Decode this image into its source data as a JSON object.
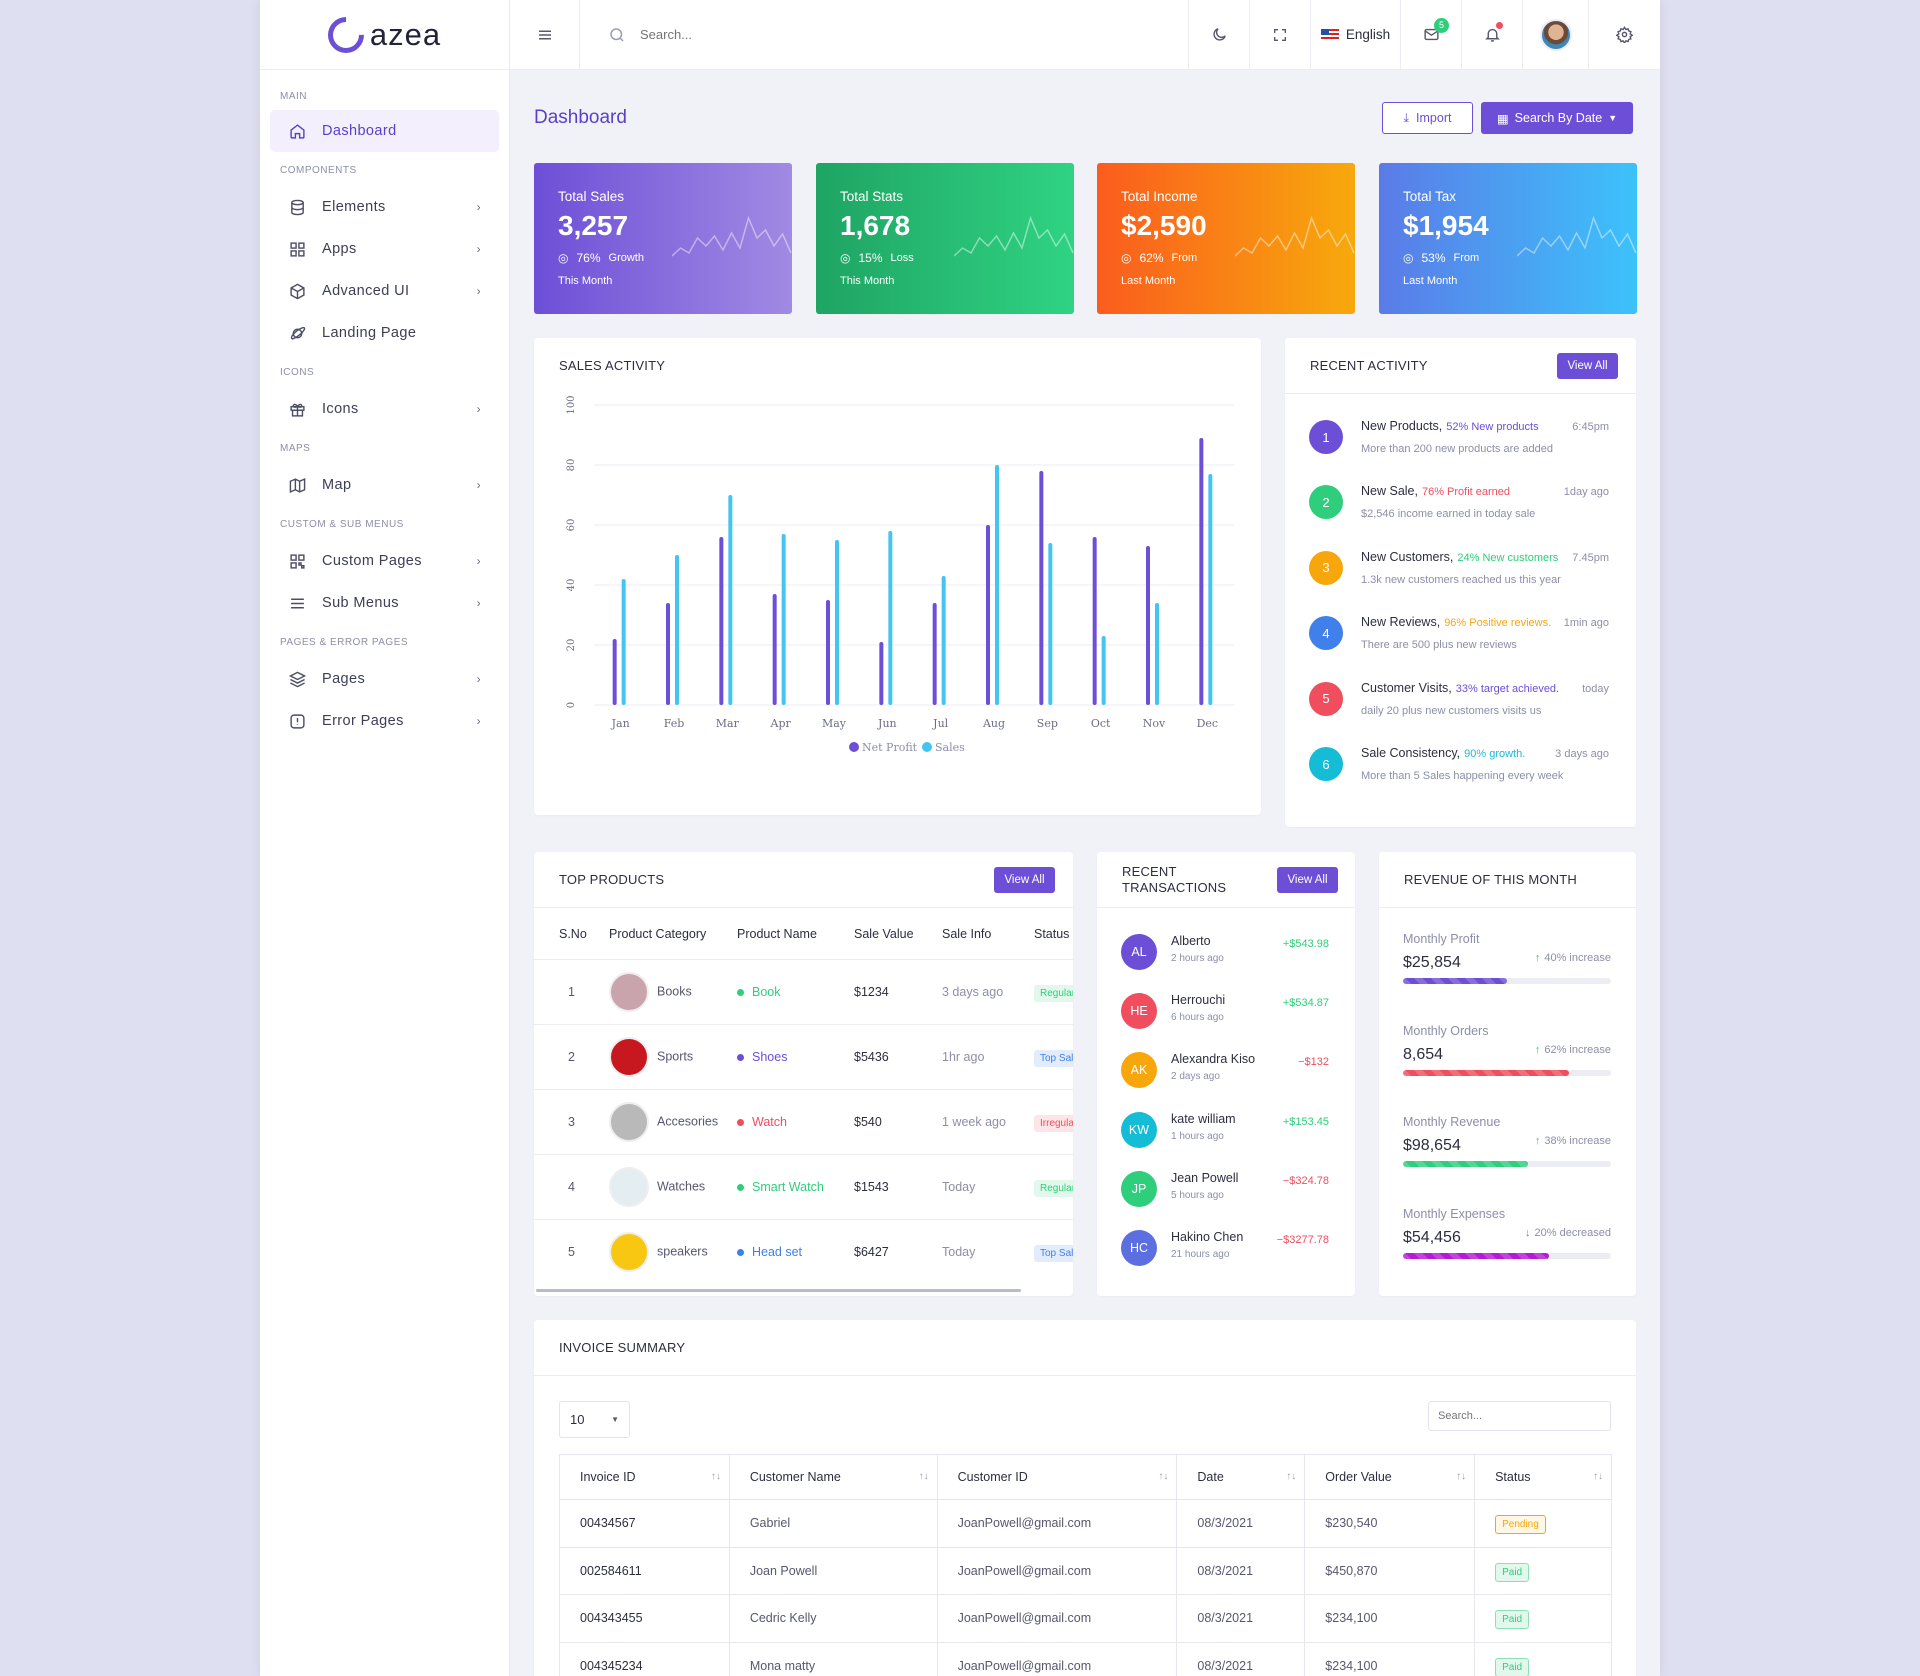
{
  "brand": {
    "name": "azea"
  },
  "sidebar": {
    "sections": [
      {
        "title": "MAIN"
      },
      {
        "title": "COMPONENTS"
      },
      {
        "title": "ICONS"
      },
      {
        "title": "MAPS"
      },
      {
        "title": "CUSTOM & SUB MENUS"
      },
      {
        "title": "PAGES & ERROR PAGES"
      }
    ],
    "items": [
      {
        "label": "Dashboard",
        "icon": "home-icon"
      },
      {
        "label": "Elements",
        "icon": "database-icon"
      },
      {
        "label": "Apps",
        "icon": "grid-icon"
      },
      {
        "label": "Advanced UI",
        "icon": "package-icon"
      },
      {
        "label": "Landing Page",
        "icon": "planet-icon"
      },
      {
        "label": "Icons",
        "icon": "gift-icon"
      },
      {
        "label": "Map",
        "icon": "map-icon"
      },
      {
        "label": "Custom Pages",
        "icon": "qr-grid-icon"
      },
      {
        "label": "Sub Menus",
        "icon": "menu-icon"
      },
      {
        "label": "Pages",
        "icon": "layers-icon"
      },
      {
        "label": "Error Pages",
        "icon": "alert-icon"
      }
    ]
  },
  "topbar": {
    "search_placeholder": "Search...",
    "language": "English",
    "mail_badge": "5"
  },
  "page": {
    "title": "Dashboard",
    "import_label": "Import",
    "search_by_date_label": "Search By Date"
  },
  "stats": [
    {
      "title": "Total Sales",
      "value": "3,257",
      "pct": "76%",
      "pct_label": "Growth",
      "period": "This Month",
      "color_from": "#6d4fd7",
      "color_to": "#a08ae3"
    },
    {
      "title": "Total Stats",
      "value": "1,678",
      "pct": "15%",
      "pct_label": "Loss",
      "period": "This Month",
      "color_from": "#1fa463",
      "color_to": "#2fd383"
    },
    {
      "title": "Total Income",
      "value": "$2,590",
      "pct": "62%",
      "pct_label": "From",
      "period": "Last Month",
      "color_from": "#fb5c1e",
      "color_to": "#f7a90c"
    },
    {
      "title": "Total Tax",
      "value": "$1,954",
      "pct": "53%",
      "pct_label": "From",
      "period": "Last Month",
      "color_from": "#5b7be7",
      "color_to": "#3cc2fb"
    }
  ],
  "sales_activity": {
    "title": "SALES ACTIVITY"
  },
  "chart_data": {
    "type": "bar",
    "categories": [
      "Jan",
      "Feb",
      "Mar",
      "Apr",
      "May",
      "Jun",
      "Jul",
      "Aug",
      "Sep",
      "Oct",
      "Nov",
      "Dec"
    ],
    "series": [
      {
        "name": "Net Profit",
        "color": "#6c4fd6",
        "values": [
          22,
          34,
          56,
          37,
          35,
          21,
          34,
          60,
          78,
          56,
          53,
          89
        ]
      },
      {
        "name": "Sales",
        "color": "#43c4f3",
        "values": [
          42,
          50,
          70,
          57,
          55,
          58,
          43,
          80,
          54,
          23,
          34,
          77
        ]
      }
    ],
    "ylim": [
      0,
      100
    ],
    "yticks": [
      "0",
      "20",
      "40",
      "60",
      "80",
      "100"
    ],
    "grid": true,
    "legend": "bottom"
  },
  "recent_activity": {
    "title": "RECENT ACTIVITY",
    "view_all": "View All",
    "items": [
      {
        "n": "1",
        "title": "New Products,",
        "highlight": "52% New products",
        "hcolor": "#6c4fd6",
        "time": "6:45pm",
        "sub": "More than 200 new products are added",
        "color": "#6c4fd6"
      },
      {
        "n": "2",
        "title": "New Sale,",
        "highlight": "76% Profit earned",
        "hcolor": "#f04e5e",
        "time": "1day ago",
        "sub": "$2,546 income earned in today sale",
        "color": "#2fce7c"
      },
      {
        "n": "3",
        "title": "New Customers,",
        "highlight": "24% New customers",
        "hcolor": "#2fce7c",
        "time": "7.45pm",
        "sub": "1.3k new customers reached us this year",
        "color": "#f7a70c"
      },
      {
        "n": "4",
        "title": "New Reviews,",
        "highlight": "96% Positive reviews.",
        "hcolor": "#f7a70c",
        "time": "1min ago",
        "sub": "There are 500 plus new reviews",
        "color": "#3f80ea"
      },
      {
        "n": "5",
        "title": "Customer Visits,",
        "highlight": "33% target achieved.",
        "hcolor": "#6c4fd6",
        "time": "today",
        "sub": "daily 20 plus new customers visits us",
        "color": "#f04e5e"
      },
      {
        "n": "6",
        "title": "Sale Consistency,",
        "highlight": "90% growth.",
        "hcolor": "#1fb8d8",
        "time": "3 days ago",
        "sub": "More than 5 Sales happening every week",
        "color": "#15bcd6"
      }
    ]
  },
  "top_products": {
    "title": "TOP PRODUCTS",
    "view_all": "View All",
    "headers": [
      "S.No",
      "Product Category",
      "Product Name",
      "Sale Value",
      "Sale Info",
      "Status"
    ],
    "rows": [
      {
        "no": "1",
        "category": "Books",
        "name": "Book",
        "dot": "#2fce7c",
        "value": "$1234",
        "info": "3 days ago",
        "status": "Regular",
        "sbg": "#e3f8ec",
        "sfg": "#2fce7c",
        "icon": "book-image-icon",
        "ibg": "#c9a4ad"
      },
      {
        "no": "2",
        "category": "Sports",
        "name": "Shoes",
        "dot": "#6c4fd6",
        "value": "$5436",
        "info": "1hr ago",
        "status": "Top Sale",
        "sbg": "#e3ecfd",
        "sfg": "#3f80ea",
        "icon": "shoe-image-icon",
        "ibg": "#c8181f"
      },
      {
        "no": "3",
        "category": "Accesories",
        "name": "Watch",
        "dot": "#f04e5e",
        "value": "$540",
        "info": "1 week ago",
        "status": "Irregular",
        "sbg": "#fde5e7",
        "sfg": "#f04e5e",
        "icon": "watch-image-icon",
        "ibg": "#b9b9b9"
      },
      {
        "no": "4",
        "category": "Watches",
        "name": "Smart Watch",
        "dot": "#2fce7c",
        "value": "$1543",
        "info": "Today",
        "status": "Regular",
        "sbg": "#e3f8ec",
        "sfg": "#2fce7c",
        "icon": "smartwatch-image-icon",
        "ibg": "#e4eef2"
      },
      {
        "no": "5",
        "category": "speakers",
        "name": "Head set",
        "dot": "#3f80ea",
        "value": "$6427",
        "info": "Today",
        "status": "Top Sale",
        "sbg": "#e3ecfd",
        "sfg": "#3f80ea",
        "icon": "headset-image-icon",
        "ibg": "#f7c712"
      }
    ]
  },
  "recent_transactions": {
    "title_line1": "RECENT",
    "title_line2": "TRANSACTIONS",
    "view_all": "View All",
    "items": [
      {
        "initials": "AL",
        "name": "Alberto",
        "time": "2 hours ago",
        "amount": "+$543.98",
        "color": "#6c4fd6",
        "acolor": "#2fce7c"
      },
      {
        "initials": "HE",
        "name": "Herrouchi",
        "time": "6 hours ago",
        "amount": "+$534.87",
        "color": "#f04e5e",
        "acolor": "#2fce7c"
      },
      {
        "initials": "AK",
        "name": "Alexandra Kiso",
        "time": "2 days ago",
        "amount": "−$132",
        "color": "#f7a70c",
        "acolor": "#f04e5e"
      },
      {
        "initials": "KW",
        "name": "kate william",
        "time": "1 hours ago",
        "amount": "+$153.45",
        "color": "#15bcd6",
        "acolor": "#2fce7c"
      },
      {
        "initials": "JP",
        "name": "Jean Powell",
        "time": "5 hours ago",
        "amount": "−$324.78",
        "color": "#2fce7c",
        "acolor": "#f04e5e"
      },
      {
        "initials": "HC",
        "name": "Hakino Chen",
        "time": "21 hours ago",
        "amount": "−$3277.78",
        "color": "#5b6fe0",
        "acolor": "#f04e5e"
      }
    ]
  },
  "revenue": {
    "title": "REVENUE OF THIS MONTH",
    "items": [
      {
        "label": "Monthly Profit",
        "value": "$25,854",
        "change": "40% increase",
        "dir": "up",
        "progress": 0.5,
        "color": "#6c4fd6"
      },
      {
        "label": "Monthly Orders",
        "value": "8,654",
        "change": "62% increase",
        "dir": "up",
        "progress": 0.8,
        "color": "#f04e5e"
      },
      {
        "label": "Monthly Revenue",
        "value": "$98,654",
        "change": "38% increase",
        "dir": "up",
        "progress": 0.6,
        "color": "#2fce7c"
      },
      {
        "label": "Monthly Expenses",
        "value": "$54,456",
        "change": "20% decreased",
        "dir": "down",
        "progress": 0.7,
        "color": "#b51bd6"
      }
    ]
  },
  "invoice": {
    "title": "INVOICE SUMMARY",
    "page_size": "10",
    "search_placeholder": "Search...",
    "headers": [
      "Invoice ID",
      "Customer Name",
      "Customer ID",
      "Date",
      "Order Value",
      "Status"
    ],
    "rows": [
      {
        "id": "00434567",
        "name": "Gabriel",
        "cid": "JoanPowell@gmail.com",
        "date": "08/3/2021",
        "value": "$230,540",
        "status": "Pending",
        "sbg": "#fff7e6",
        "sfg": "#f7a70c",
        "sborder": "#f7a70c"
      },
      {
        "id": "002584611",
        "name": "Joan Powell",
        "cid": "JoanPowell@gmail.com",
        "date": "08/3/2021",
        "value": "$450,870",
        "status": "Paid",
        "sbg": "#e3f8ec",
        "sfg": "#2fce7c",
        "sborder": "#8fdfb5"
      },
      {
        "id": "004343455",
        "name": "Cedric Kelly",
        "cid": "JoanPowell@gmail.com",
        "date": "08/3/2021",
        "value": "$234,100",
        "status": "Paid",
        "sbg": "#e3f8ec",
        "sfg": "#2fce7c",
        "sborder": "#8fdfb5"
      },
      {
        "id": "004345234",
        "name": "Mona matty",
        "cid": "JoanPowell@gmail.com",
        "date": "08/3/2021",
        "value": "$234,100",
        "status": "Paid",
        "sbg": "#e3f8ec",
        "sfg": "#2fce7c",
        "sborder": "#8fdfb5"
      }
    ]
  }
}
